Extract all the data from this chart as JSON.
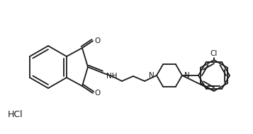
{
  "bg_color": "#ffffff",
  "line_color": "#1a1a1a",
  "line_width": 1.3,
  "hcl_label": "HCl",
  "cl_label": "Cl",
  "nh_label": "NH",
  "o_label1": "O",
  "o_label2": "O",
  "n_label1": "N",
  "n_label2": "N",
  "font_size": 7.5
}
